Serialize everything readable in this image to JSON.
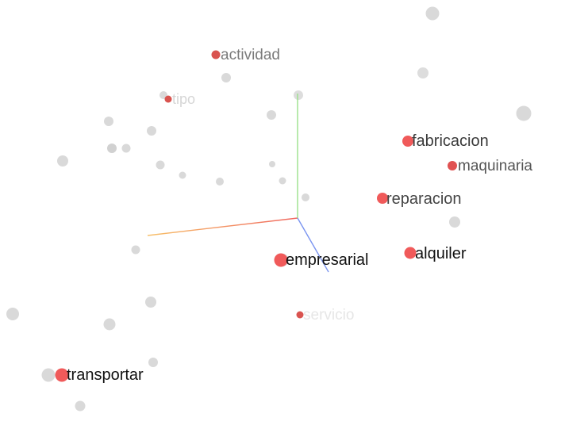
{
  "projector": {
    "background_color": "#ffffff",
    "axes": {
      "x_color_start": "#f7c16a",
      "x_color_end": "#f0665e",
      "y_color": "#9be08a",
      "z_color": "#7b95f0"
    },
    "highlight_color": "#f05a5a",
    "neighbor_point_color": "#d9d9d9",
    "labeled_points": [
      {
        "name": "actividad",
        "text": "actividad",
        "color": "#d9534f",
        "label_color": "#7a7a7a"
      },
      {
        "name": "tipo",
        "text": "tipo",
        "color": "#d9534f",
        "label_color": "#d6d6d6"
      },
      {
        "name": "fabricacion",
        "text": "fabricacion",
        "color": "#f05a5a",
        "label_color": "#3a3a3a"
      },
      {
        "name": "maquinaria",
        "text": "maquinaria",
        "color": "#e05252",
        "label_color": "#555555"
      },
      {
        "name": "reparacion",
        "text": "reparacion",
        "color": "#f05a5a",
        "label_color": "#444444"
      },
      {
        "name": "alquiler",
        "text": "alquiler",
        "color": "#f05a5a",
        "label_color": "#111111"
      },
      {
        "name": "empresarial",
        "text": "empresarial",
        "color": "#f05a5a",
        "label_color": "#111111"
      },
      {
        "name": "servicio",
        "text": "servicio",
        "color": "#d9534f",
        "label_color": "#e6e6e6"
      },
      {
        "name": "transportar",
        "text": "transportar",
        "color": "#f05a5a",
        "label_color": "#111111"
      }
    ]
  }
}
